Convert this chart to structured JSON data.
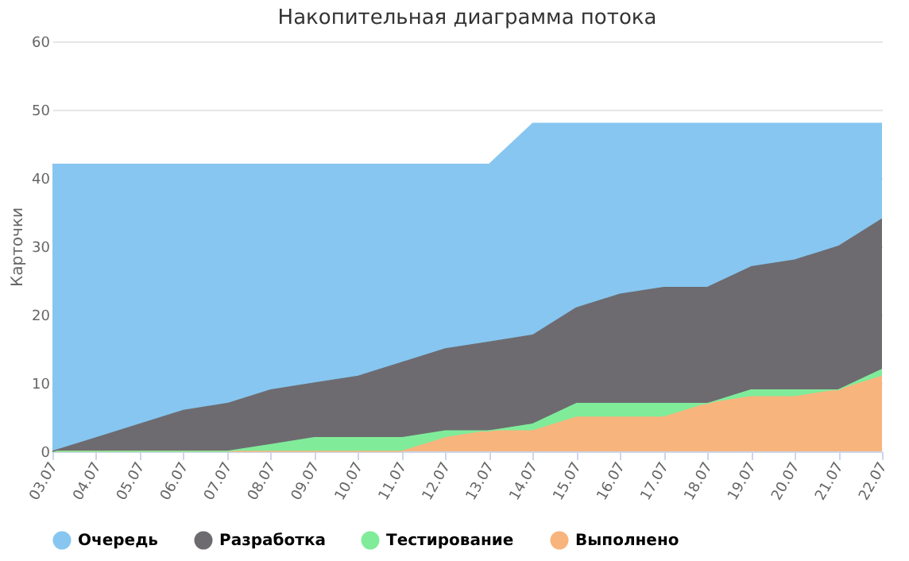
{
  "chart_data": {
    "type": "area",
    "stacked": true,
    "title": "Накопительная диаграмма потока",
    "ylabel": "Карточки",
    "categories": [
      "03.07",
      "04.07",
      "05.07",
      "06.07",
      "07.07",
      "08.07",
      "09.07",
      "10.07",
      "11.07",
      "12.07",
      "13.07",
      "14.07",
      "15.07",
      "16.07",
      "17.07",
      "18.07",
      "19.07",
      "20.07",
      "21.07",
      "22.07"
    ],
    "series": [
      {
        "name": "Выполнено",
        "color": "#f8b47d",
        "values": [
          0,
          0,
          0,
          0,
          0,
          0,
          0,
          0,
          0,
          2,
          3,
          3,
          5,
          5,
          5,
          7,
          8,
          8,
          9,
          11
        ]
      },
      {
        "name": "Тестирование",
        "color": "#80ec9a",
        "values": [
          0,
          0,
          0,
          0,
          0,
          1,
          2,
          2,
          2,
          1,
          0,
          1,
          2,
          2,
          2,
          0,
          1,
          1,
          0,
          1
        ]
      },
      {
        "name": "Разработка",
        "color": "#6d6b70",
        "values": [
          0,
          2,
          4,
          6,
          7,
          8,
          8,
          9,
          11,
          12,
          13,
          13,
          14,
          16,
          17,
          17,
          18,
          19,
          21,
          22
        ]
      },
      {
        "name": "Очередь",
        "color": "#87c6f0",
        "values": [
          42,
          40,
          38,
          36,
          35,
          33,
          32,
          31,
          29,
          27,
          26,
          31,
          27,
          25,
          24,
          24,
          21,
          20,
          18,
          14
        ]
      }
    ],
    "ylim": [
      0,
      60
    ],
    "yticks": [
      0,
      10,
      20,
      30,
      40,
      50,
      60
    ],
    "grid": "y",
    "legend": "bottom"
  }
}
